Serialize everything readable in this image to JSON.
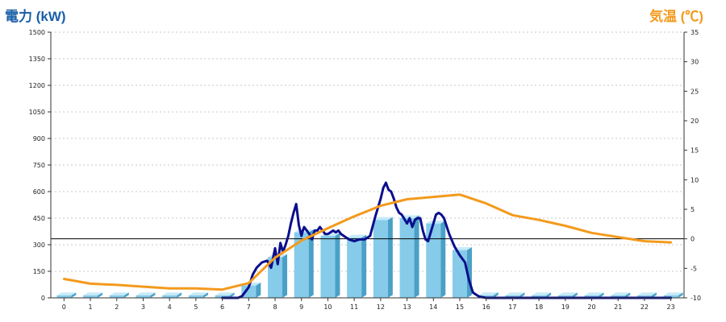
{
  "header": {
    "left_axis_title": "電力 (kW)",
    "right_axis_title": "気温 (℃)"
  },
  "colors": {
    "bar_front": "#86cbea",
    "bar_side": "#4aa0c6",
    "bar_top": "#c6eaf8",
    "power_line": "#0b0f8c",
    "temp_line": "#f39a1c",
    "grid": "#c9c9c9",
    "axis": "#333333",
    "left_title": "#1a5fa8",
    "right_title": "#f39a1c"
  },
  "chart_data": {
    "type": "bar+line",
    "title": "",
    "xlabel": "",
    "ylabel_left": "電力 (kW)",
    "ylabel_right": "気温 (℃)",
    "x_categories": [
      "0",
      "1",
      "2",
      "3",
      "4",
      "5",
      "6",
      "7",
      "8",
      "9",
      "10",
      "11",
      "12",
      "13",
      "14",
      "15",
      "16",
      "17",
      "18",
      "19",
      "20",
      "21",
      "22",
      "23"
    ],
    "y_left": {
      "min": 0,
      "max": 1500,
      "ticks": [
        0,
        150,
        300,
        450,
        600,
        750,
        900,
        1050,
        1200,
        1350,
        1500
      ]
    },
    "y_right": {
      "min": -10,
      "max": 35,
      "ticks": [
        -10,
        -5,
        0,
        5,
        10,
        15,
        20,
        25,
        30,
        35
      ]
    },
    "grid": "horizontal dotted",
    "reference_line_right": 0,
    "series": [
      {
        "kind": "bar",
        "axis": "left",
        "values": [
          0,
          0,
          0,
          0,
          0,
          0,
          0,
          70,
          230,
          370,
          350,
          340,
          440,
          450,
          420,
          270,
          15,
          0,
          0,
          0,
          0,
          0,
          0,
          0
        ]
      },
      {
        "kind": "line",
        "axis": "left",
        "x": [
          6.0,
          6.4,
          6.6,
          6.75,
          7.0,
          7.15,
          7.3,
          7.5,
          7.7,
          7.85,
          8.0,
          8.1,
          8.2,
          8.3,
          8.4,
          8.5,
          8.6,
          8.7,
          8.8,
          8.9,
          9.0,
          9.05,
          9.1,
          9.2,
          9.3,
          9.4,
          9.5,
          9.6,
          9.7,
          9.8,
          9.9,
          10.0,
          10.1,
          10.2,
          10.3,
          10.4,
          10.5,
          10.6,
          10.8,
          11.0,
          11.2,
          11.4,
          11.6,
          11.8,
          12.0,
          12.1,
          12.2,
          12.3,
          12.4,
          12.5,
          12.6,
          12.7,
          12.8,
          13.0,
          13.1,
          13.2,
          13.3,
          13.4,
          13.5,
          13.6,
          13.7,
          13.8,
          14.0,
          14.1,
          14.2,
          14.3,
          14.4,
          14.6,
          14.8,
          15.0,
          15.2,
          15.35,
          15.5,
          15.6,
          15.7,
          15.8,
          16.0,
          16.5,
          23.0
        ],
        "values": [
          0,
          0,
          0,
          10,
          60,
          130,
          170,
          200,
          210,
          170,
          280,
          190,
          310,
          260,
          300,
          350,
          420,
          480,
          530,
          410,
          350,
          380,
          400,
          380,
          360,
          330,
          380,
          380,
          400,
          380,
          360,
          360,
          370,
          380,
          370,
          380,
          360,
          350,
          330,
          320,
          330,
          330,
          350,
          460,
          560,
          620,
          650,
          610,
          600,
          560,
          510,
          480,
          470,
          420,
          450,
          400,
          440,
          450,
          450,
          380,
          330,
          320,
          420,
          470,
          480,
          470,
          450,
          360,
          290,
          240,
          200,
          100,
          30,
          20,
          10,
          5,
          0,
          0,
          0
        ]
      },
      {
        "kind": "line",
        "axis": "right",
        "x": [
          0,
          1,
          2,
          3,
          4,
          5,
          6,
          7,
          8,
          9,
          10,
          11,
          12,
          13,
          14,
          15,
          16,
          17,
          18,
          19,
          20,
          21,
          22,
          23
        ],
        "values": [
          -6.8,
          -7.6,
          -7.8,
          -8.1,
          -8.4,
          -8.4,
          -8.6,
          -7.5,
          -3.2,
          -0.3,
          1.8,
          3.8,
          5.6,
          6.7,
          7.1,
          7.5,
          6.0,
          4.0,
          3.2,
          2.2,
          1.0,
          0.3,
          -0.4,
          -0.6
        ]
      }
    ]
  }
}
